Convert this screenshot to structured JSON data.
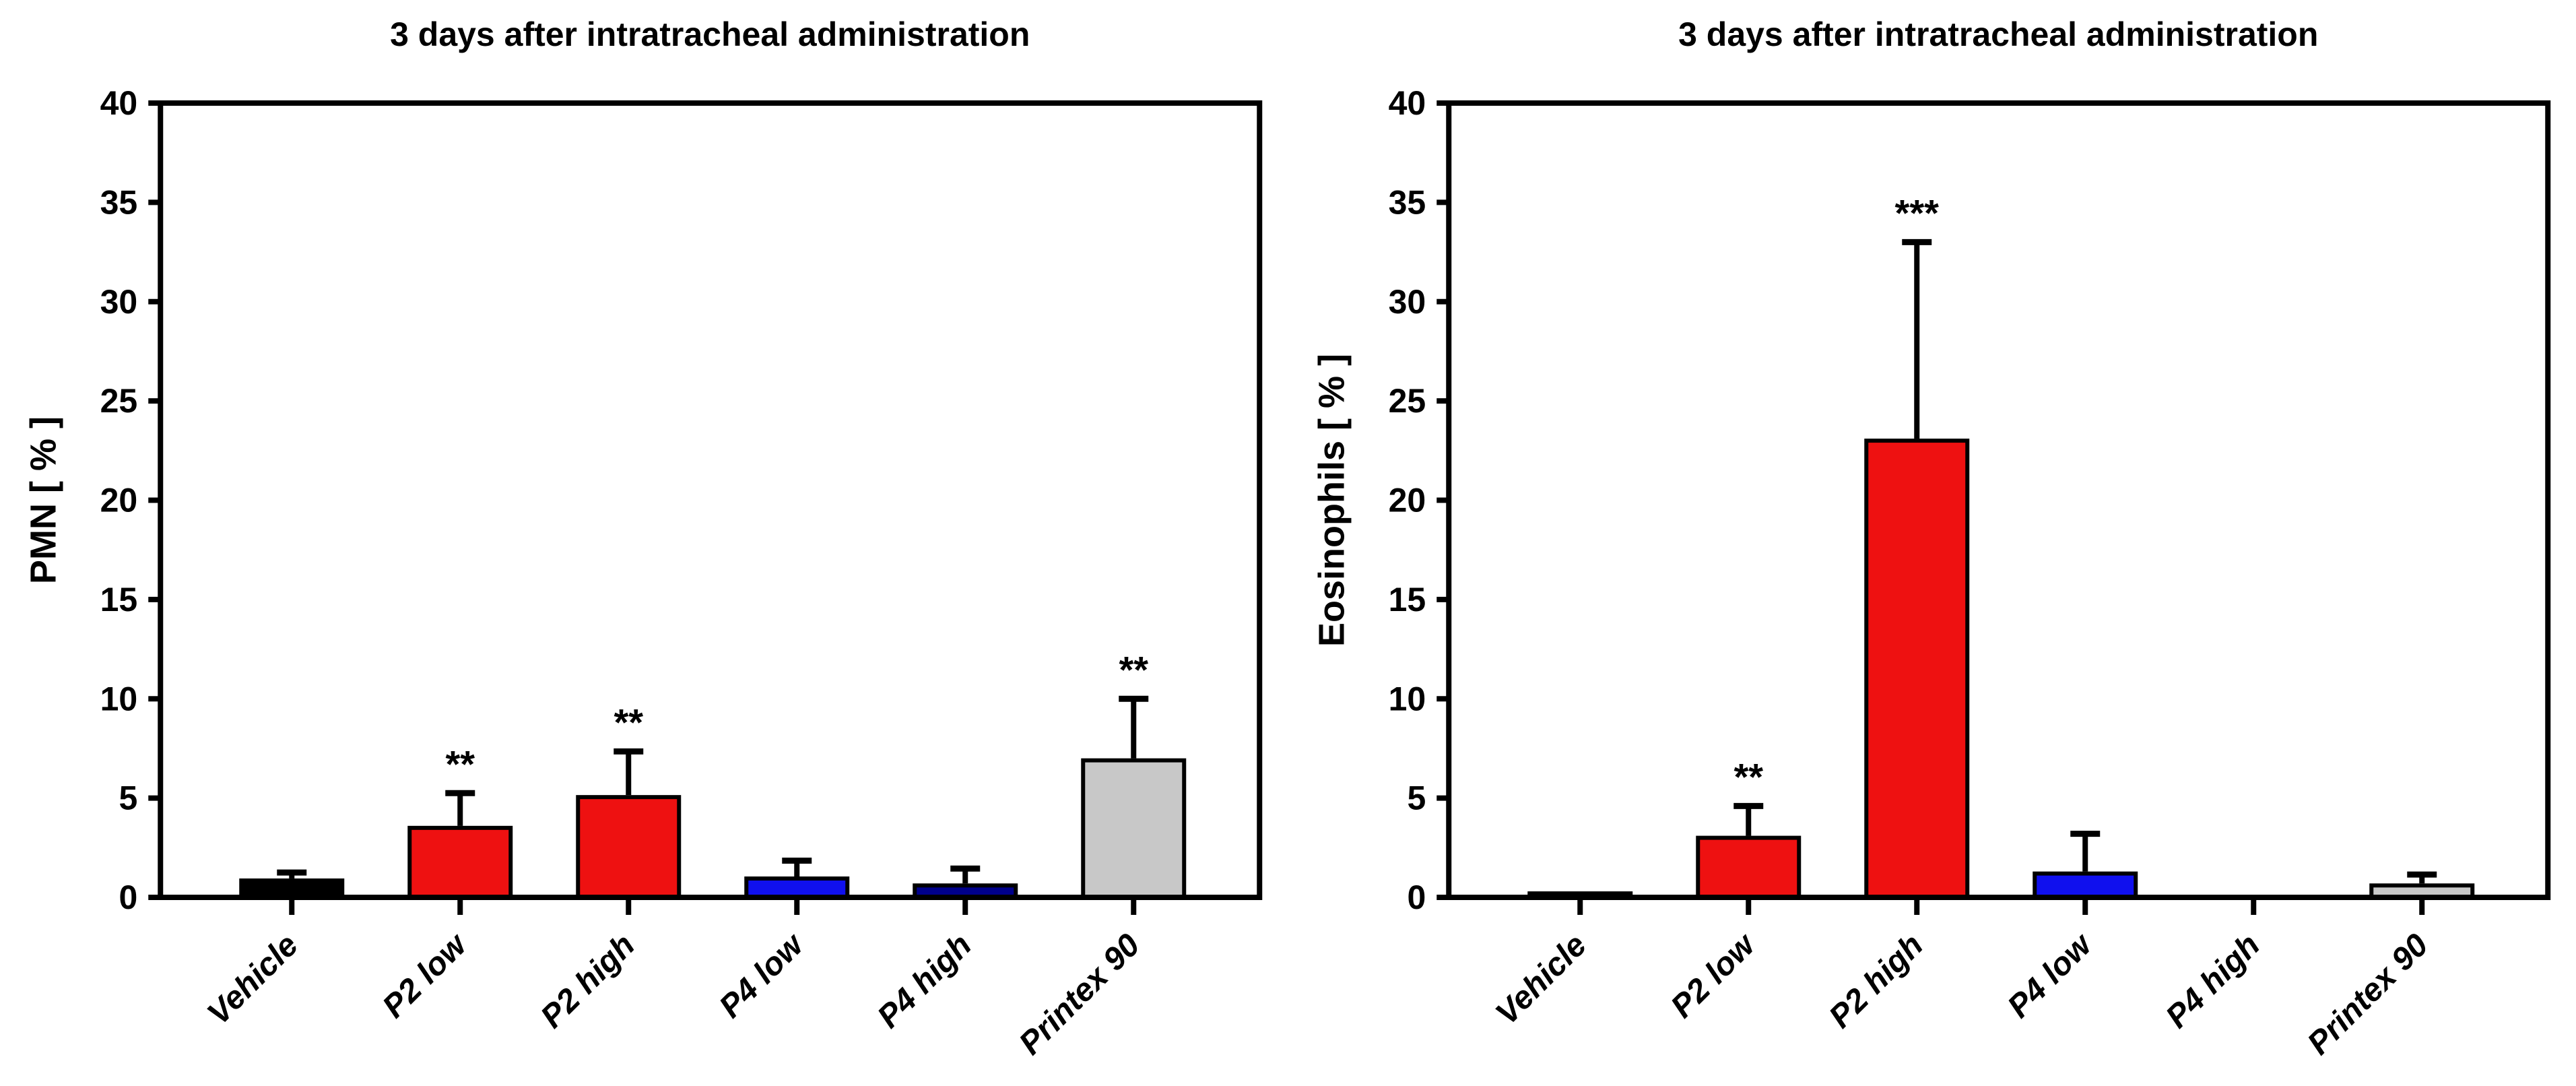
{
  "figure": {
    "background": "#FFFFFF",
    "frame_color": "#000000",
    "text_color": "#000000"
  },
  "chart_data": [
    {
      "type": "bar",
      "title": "3 days after intratracheal administration",
      "xlabel": "",
      "ylabel": "PMN [ % ]",
      "ylim": [
        0,
        40
      ],
      "ytick_step": 5,
      "yticks": [
        0,
        5,
        10,
        15,
        20,
        25,
        30,
        35,
        40
      ],
      "grid": false,
      "legend": "none",
      "categories": [
        "Vehicle",
        "P2 low",
        "P2 high",
        "P4 low",
        "P4 high",
        "Printex 90"
      ],
      "values": [
        0.85,
        3.5,
        5.05,
        0.95,
        0.6,
        6.9
      ],
      "error_bar_tops": [
        1.25,
        5.25,
        7.35,
        1.85,
        1.45,
        10.0
      ],
      "significance": [
        "",
        "**",
        "**",
        "",
        "",
        "**"
      ],
      "bar_colors": [
        "#000000",
        "#EE1111",
        "#EE1111",
        "#1010EE",
        "#00008B",
        "#C8C8C8"
      ]
    },
    {
      "type": "bar",
      "title": "3 days after intratracheal administration",
      "xlabel": "",
      "ylabel": "Eosinophils [ % ]",
      "ylim": [
        0,
        40
      ],
      "ytick_step": 5,
      "yticks": [
        0,
        5,
        10,
        15,
        20,
        25,
        30,
        35,
        40
      ],
      "grid": false,
      "legend": "none",
      "categories": [
        "Vehicle",
        "P2 low",
        "P2 high",
        "P4 low",
        "P4 high",
        "Printex 90"
      ],
      "values": [
        0.2,
        3.0,
        23.0,
        1.2,
        0.0,
        0.6
      ],
      "error_bar_tops": [
        null,
        4.6,
        33.0,
        3.2,
        null,
        1.15
      ],
      "significance": [
        "",
        "**",
        "***",
        "",
        "",
        ""
      ],
      "bar_colors": [
        "#000000",
        "#EE1111",
        "#EE1111",
        "#1010EE",
        "#00008B",
        "#C8C8C8"
      ]
    }
  ]
}
